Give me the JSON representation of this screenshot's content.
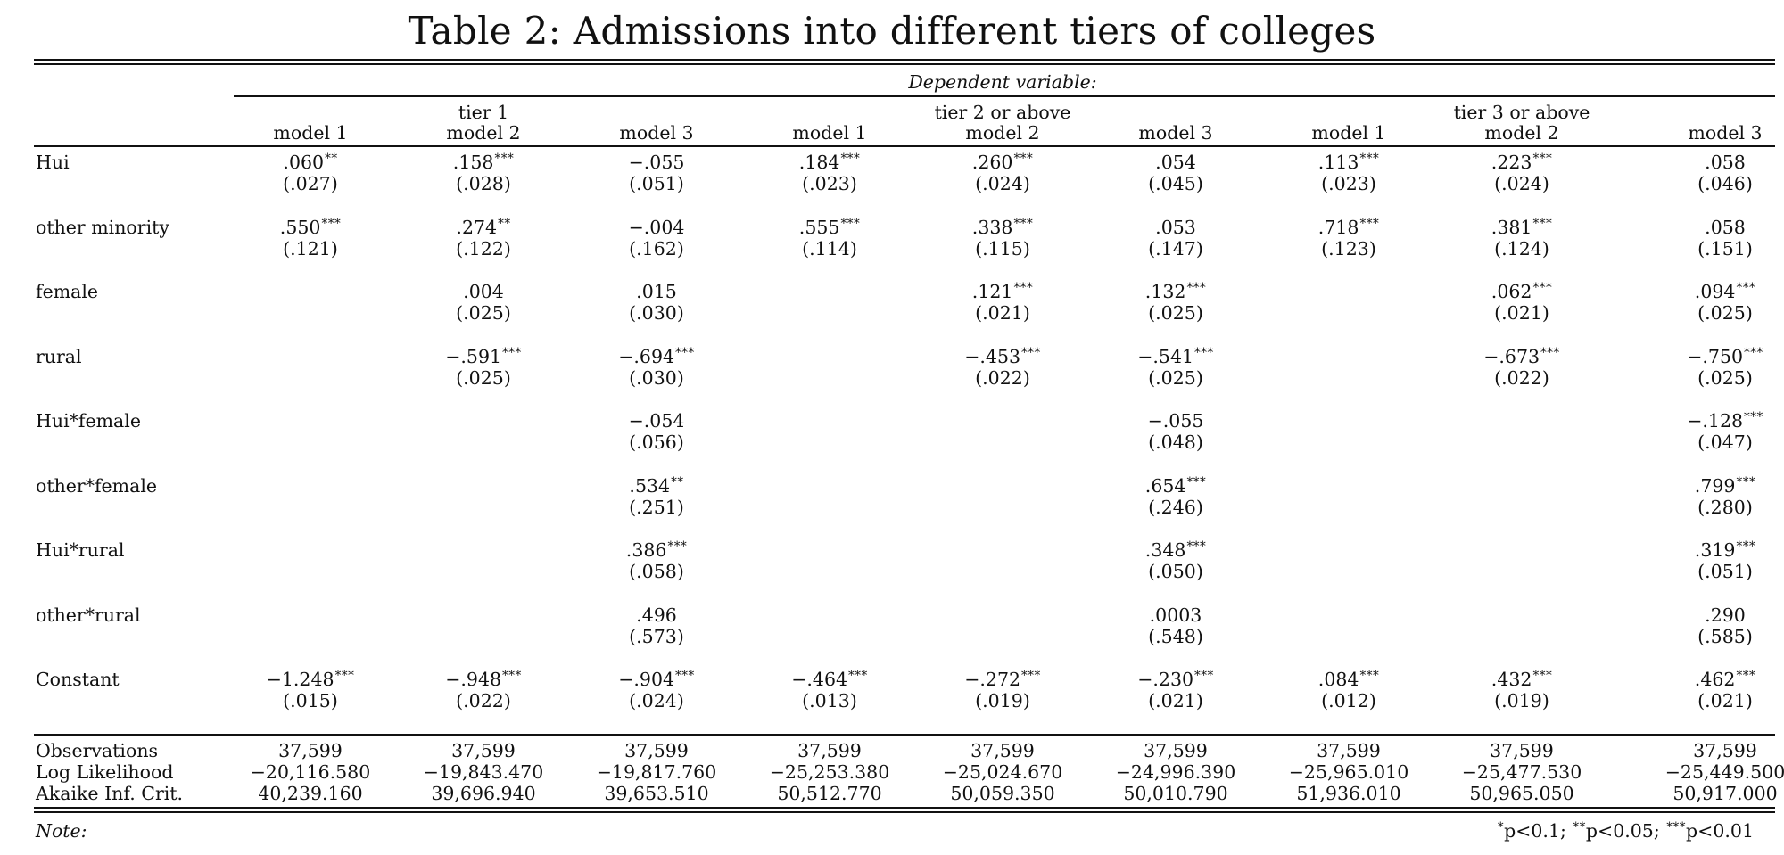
{
  "title": "Table 2: Admissions into different tiers of colleges",
  "dep_var_label": "Dependent variable:",
  "groups": [
    "tier 1",
    "tier 2 or above",
    "tier 3 or above"
  ],
  "models": [
    "model 1",
    "model 2",
    "model 3",
    "model 1",
    "model 2",
    "model 3",
    "model 1",
    "model 2",
    "model 3"
  ],
  "rows": [
    {
      "label": "Hui",
      "coef": [
        ".060",
        ".158",
        "−.055",
        ".184",
        ".260",
        ".054",
        ".113",
        ".223",
        ".058"
      ],
      "stars": [
        "**",
        "***",
        "",
        "***",
        "***",
        "",
        "***",
        "***",
        ""
      ],
      "se": [
        "(.027)",
        "(.028)",
        "(.051)",
        "(.023)",
        "(.024)",
        "(.045)",
        "(.023)",
        "(.024)",
        "(.046)"
      ]
    },
    {
      "label": "other minority",
      "coef": [
        ".550",
        ".274",
        "−.004",
        ".555",
        ".338",
        ".053",
        ".718",
        ".381",
        ".058"
      ],
      "stars": [
        "***",
        "**",
        "",
        "***",
        "***",
        "",
        "***",
        "***",
        ""
      ],
      "se": [
        "(.121)",
        "(.122)",
        "(.162)",
        "(.114)",
        "(.115)",
        "(.147)",
        "(.123)",
        "(.124)",
        "(.151)"
      ]
    },
    {
      "label": "female",
      "coef": [
        "",
        ".004",
        ".015",
        "",
        ".121",
        ".132",
        "",
        ".062",
        ".094"
      ],
      "stars": [
        "",
        "",
        "",
        "",
        "***",
        "***",
        "",
        "***",
        "***"
      ],
      "se": [
        "",
        "(.025)",
        "(.030)",
        "",
        "(.021)",
        "(.025)",
        "",
        "(.021)",
        "(.025)"
      ]
    },
    {
      "label": "rural",
      "coef": [
        "",
        "−.591",
        "−.694",
        "",
        "−.453",
        "−.541",
        "",
        "−.673",
        "−.750"
      ],
      "stars": [
        "",
        "***",
        "***",
        "",
        "***",
        "***",
        "",
        "***",
        "***"
      ],
      "se": [
        "",
        "(.025)",
        "(.030)",
        "",
        "(.022)",
        "(.025)",
        "",
        "(.022)",
        "(.025)"
      ]
    },
    {
      "label": "Hui*female",
      "coef": [
        "",
        "",
        "−.054",
        "",
        "",
        "−.055",
        "",
        "",
        "−.128"
      ],
      "stars": [
        "",
        "",
        "",
        "",
        "",
        "",
        "",
        "",
        "***"
      ],
      "se": [
        "",
        "",
        "(.056)",
        "",
        "",
        "(.048)",
        "",
        "",
        "(.047)"
      ]
    },
    {
      "label": "other*female",
      "coef": [
        "",
        "",
        ".534",
        "",
        "",
        ".654",
        "",
        "",
        ".799"
      ],
      "stars": [
        "",
        "",
        "**",
        "",
        "",
        "***",
        "",
        "",
        "***"
      ],
      "se": [
        "",
        "",
        "(.251)",
        "",
        "",
        "(.246)",
        "",
        "",
        "(.280)"
      ]
    },
    {
      "label": "Hui*rural",
      "coef": [
        "",
        "",
        ".386",
        "",
        "",
        ".348",
        "",
        "",
        ".319"
      ],
      "stars": [
        "",
        "",
        "***",
        "",
        "",
        "***",
        "",
        "",
        "***"
      ],
      "se": [
        "",
        "",
        "(.058)",
        "",
        "",
        "(.050)",
        "",
        "",
        "(.051)"
      ]
    },
    {
      "label": "other*rural",
      "coef": [
        "",
        "",
        ".496",
        "",
        "",
        ".0003",
        "",
        "",
        ".290"
      ],
      "stars": [
        "",
        "",
        "",
        "",
        "",
        "",
        "",
        "",
        ""
      ],
      "se": [
        "",
        "",
        "(.573)",
        "",
        "",
        "(.548)",
        "",
        "",
        "(.585)"
      ]
    },
    {
      "label": "Constant",
      "coef": [
        "−1.248",
        "−.948",
        "−.904",
        "−.464",
        "−.272",
        "−.230",
        ".084",
        ".432",
        ".462"
      ],
      "stars": [
        "***",
        "***",
        "***",
        "***",
        "***",
        "***",
        "***",
        "***",
        "***"
      ],
      "se": [
        "(.015)",
        "(.022)",
        "(.024)",
        "(.013)",
        "(.019)",
        "(.021)",
        "(.012)",
        "(.019)",
        "(.021)"
      ]
    }
  ],
  "stats": [
    {
      "label": "Observations",
      "values": [
        "37,599",
        "37,599",
        "37,599",
        "37,599",
        "37,599",
        "37,599",
        "37,599",
        "37,599",
        "37,599"
      ]
    },
    {
      "label": "Log Likelihood",
      "values": [
        "−20,116.580",
        "−19,843.470",
        "−19,817.760",
        "−25,253.380",
        "−25,024.670",
        "−24,996.390",
        "−25,965.010",
        "−25,477.530",
        "−25,449.500"
      ]
    },
    {
      "label": "Akaike Inf. Crit.",
      "values": [
        "40,239.160",
        "39,696.940",
        "39,653.510",
        "50,512.770",
        "50,059.350",
        "50,010.790",
        "51,936.010",
        "50,965.050",
        "50,917.000"
      ]
    }
  ],
  "note_label": "Note:",
  "note_text": [
    {
      "stars": "*",
      "text": "p<0.1;"
    },
    {
      "stars": "**",
      "text": "p<0.05;"
    },
    {
      "stars": "***",
      "text": "p<0.01"
    }
  ]
}
